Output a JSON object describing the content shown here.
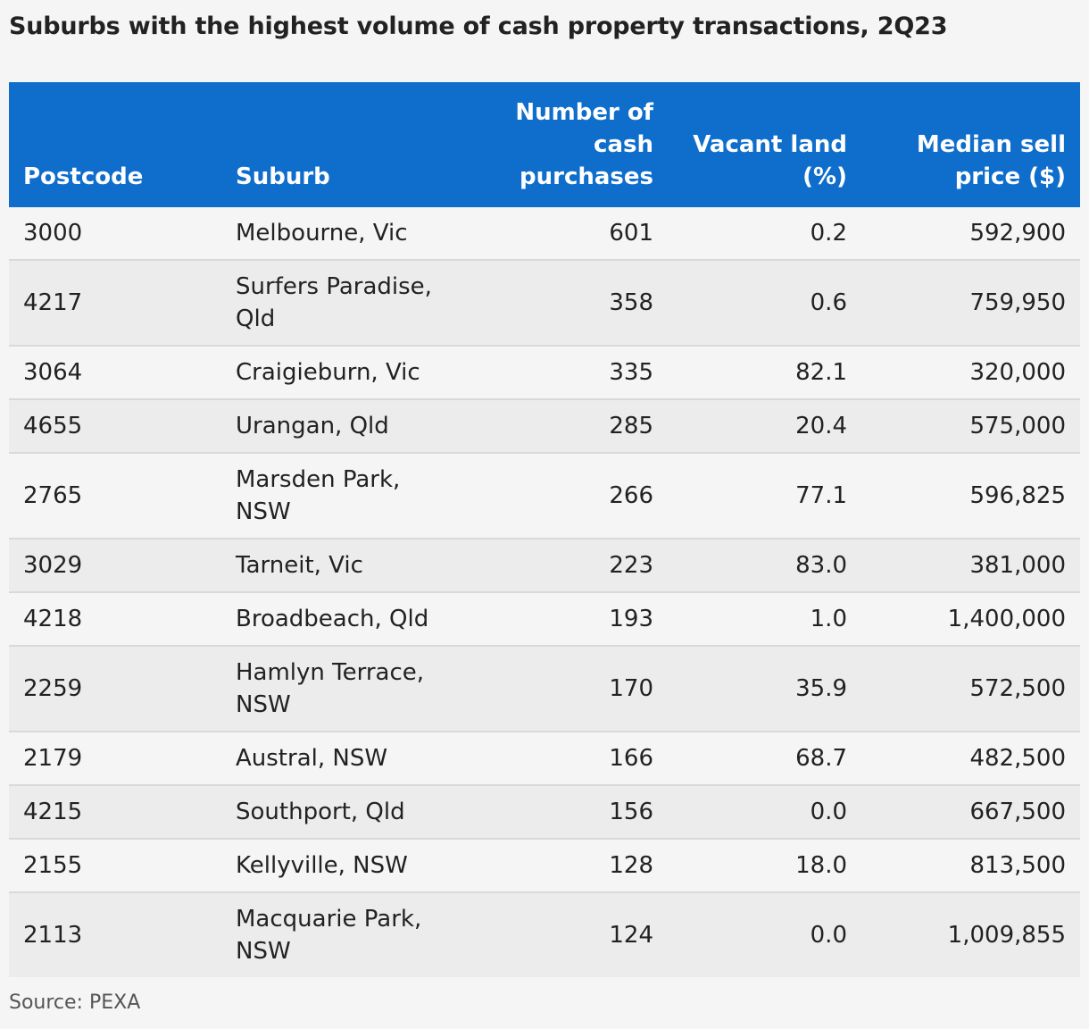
{
  "colors": {
    "header_bg": "#0f6ecb",
    "header_text": "#ffffff",
    "row_odd": "#f5f5f5",
    "row_even": "#ececec",
    "divider": "#d9d9d9"
  },
  "chart_data": {
    "type": "table",
    "title": "Suburbs with the highest volume of cash property transactions, 2Q23",
    "columns": [
      "Postcode",
      "Suburb",
      "Number of cash purchases",
      "Vacant land (%)",
      "Median sell price ($)"
    ],
    "rows": [
      [
        "3000",
        "Melbourne, Vic",
        "601",
        "0.2",
        "592,900"
      ],
      [
        "4217",
        "Surfers Paradise, Qld",
        "358",
        "0.6",
        "759,950"
      ],
      [
        "3064",
        "Craigieburn, Vic",
        "335",
        "82.1",
        "320,000"
      ],
      [
        "4655",
        "Urangan, Qld",
        "285",
        "20.4",
        "575,000"
      ],
      [
        "2765",
        "Marsden Park, NSW",
        "266",
        "77.1",
        "596,825"
      ],
      [
        "3029",
        "Tarneit, Vic",
        "223",
        "83.0",
        "381,000"
      ],
      [
        "4218",
        "Broadbeach, Qld",
        "193",
        "1.0",
        "1,400,000"
      ],
      [
        "2259",
        "Hamlyn Terrace, NSW",
        "170",
        "35.9",
        "572,500"
      ],
      [
        "2179",
        "Austral, NSW",
        "166",
        "68.7",
        "482,500"
      ],
      [
        "4215",
        "Southport, Qld",
        "156",
        "0.0",
        "667,500"
      ],
      [
        "2155",
        "Kellyville, NSW",
        "128",
        "18.0",
        "813,500"
      ],
      [
        "2113",
        "Macquarie Park, NSW",
        "124",
        "0.0",
        "1,009,855"
      ]
    ],
    "source": "Source: PEXA"
  }
}
